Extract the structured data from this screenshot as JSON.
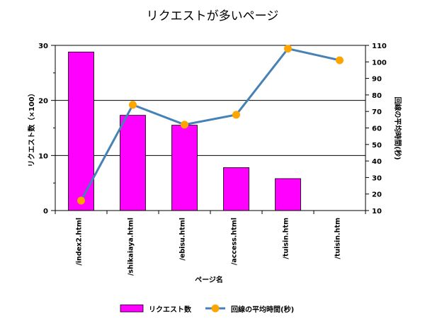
{
  "chart_data": {
    "type": "bar+line",
    "title": "リクエストが多いページ",
    "categories": [
      "/index2.html",
      "/shikaiaya.html",
      "/ebisu.html",
      "/access.html",
      "/tuisin.htm",
      "/tuisin.htm"
    ],
    "xlabel": "ページ名",
    "ylabel_left": "リクエスト数（×100）",
    "ylabel_right": "回線の平均時間(秒)",
    "y_left_range": [
      0,
      30
    ],
    "y_left_major_ticks": [
      0,
      10,
      20,
      30
    ],
    "y_right_range": [
      10,
      110
    ],
    "y_right_ticks": [
      10,
      20,
      30,
      40,
      50,
      60,
      70,
      80,
      90,
      100,
      110
    ],
    "gridlines": "horizontal at major left-axis ticks",
    "legend_position": "bottom",
    "series": [
      {
        "name": "リクエスト数",
        "type": "bar",
        "axis": "left",
        "values": [
          28.8,
          17.3,
          15.5,
          7.8,
          5.8,
          0
        ],
        "color": "#ff00ff"
      },
      {
        "name": "回線の平均時間(秒)",
        "type": "line",
        "axis": "right",
        "values": [
          16,
          74,
          62,
          68,
          108,
          101
        ],
        "color": "#4682b4",
        "marker_color": "#ffa500"
      }
    ]
  }
}
